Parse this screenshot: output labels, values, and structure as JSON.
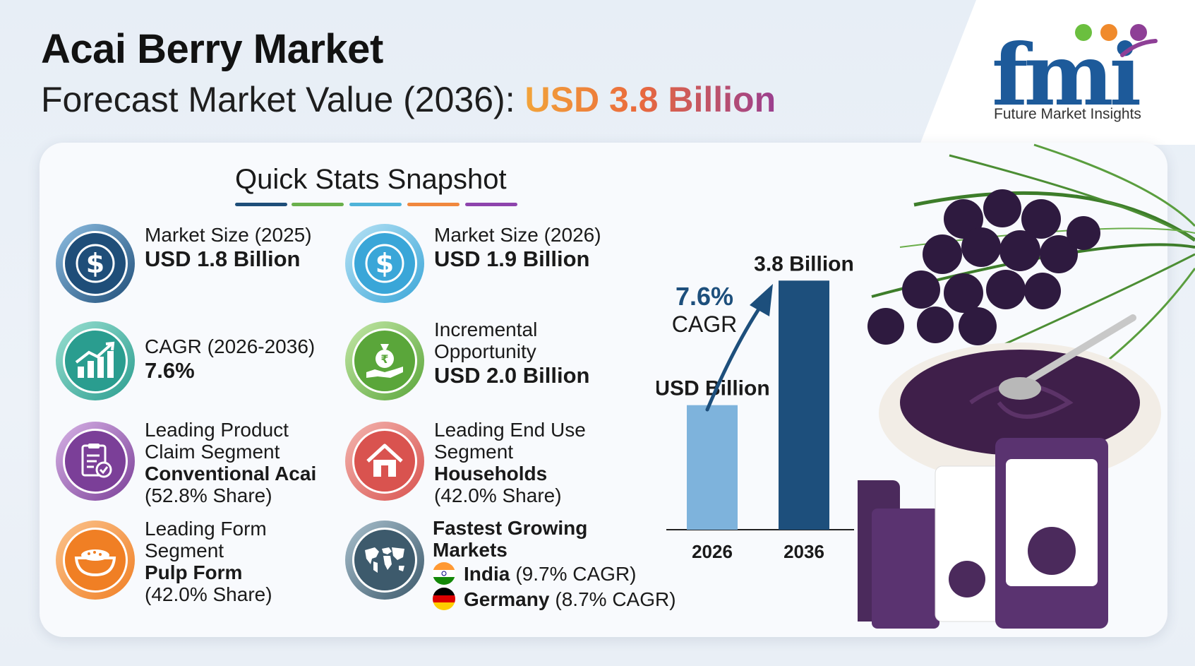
{
  "header": {
    "title": "Acai Berry Market",
    "subtitle_prefix": "Forecast Market Value (2036):",
    "subtitle_value": "USD 3.8 Billion"
  },
  "logo": {
    "mark": "fmi",
    "text": "Future Market Insights",
    "dot_colors": [
      "#6bbf3f",
      "#f08a2c",
      "#8e3f96"
    ],
    "mark_color": "#1d5a9a"
  },
  "section": {
    "title": "Quick Stats Snapshot",
    "underline_colors": [
      "#1f4e79",
      "#6ab04c",
      "#4fb3d9",
      "#f0883e",
      "#8e44ad"
    ]
  },
  "stats": [
    {
      "icon": "dollar-icon",
      "label": "Market Size (2025)",
      "value": "USD 1.8 Billion",
      "color": "#1f4e79"
    },
    {
      "icon": "dollar-icon",
      "label": "Market Size (2026)",
      "value": "USD 1.9 Billion",
      "color": "#3aa6d8"
    },
    {
      "icon": "growth-chart-icon",
      "label": "CAGR (2026-2036)",
      "value": "7.6%",
      "color": "#2a9d8f"
    },
    {
      "icon": "money-bag-hand-icon",
      "label_1": "Incremental",
      "label_2": "Opportunity",
      "value": "USD 2.0 Billion",
      "color": "#5aa63a"
    },
    {
      "icon": "checklist-icon",
      "label_1": "Leading Product",
      "label_2": "Claim Segment",
      "value": "Conventional Acai",
      "share": "(52.8% Share)",
      "color": "#7b3f98"
    },
    {
      "icon": "house-icon",
      "label_1": "Leading End Use",
      "label_2": "Segment",
      "value": "Households",
      "share": "(42.0% Share)",
      "color": "#d9534f"
    },
    {
      "icon": "bowl-icon",
      "label_1": "Leading Form",
      "label_2": "Segment",
      "value": "Pulp Form",
      "share": "(42.0% Share)",
      "color": "#f07f24"
    },
    {
      "icon": "world-map-icon",
      "label_1": "Fastest Growing",
      "label_2": "Markets",
      "markets": [
        {
          "country": "India",
          "cagr": "(9.7% CAGR)",
          "flag": "india-flag-icon"
        },
        {
          "country": "Germany",
          "cagr": "(8.7% CAGR)",
          "flag": "germany-flag-icon"
        }
      ],
      "color": "#3d5a6c"
    }
  ],
  "chart_data": {
    "type": "bar",
    "categories": [
      "2026",
      "2036"
    ],
    "values": [
      1.9,
      3.8
    ],
    "unit_label": "USD Billion",
    "data_labels": [
      "USD Billion",
      "3.8 Billion"
    ],
    "annotation": {
      "value": "7.6%",
      "text": "CAGR"
    },
    "colors": [
      "#7eb3dc",
      "#1d4f7c"
    ],
    "ylim": [
      0,
      4.0
    ],
    "grid": false,
    "legend": "none"
  }
}
